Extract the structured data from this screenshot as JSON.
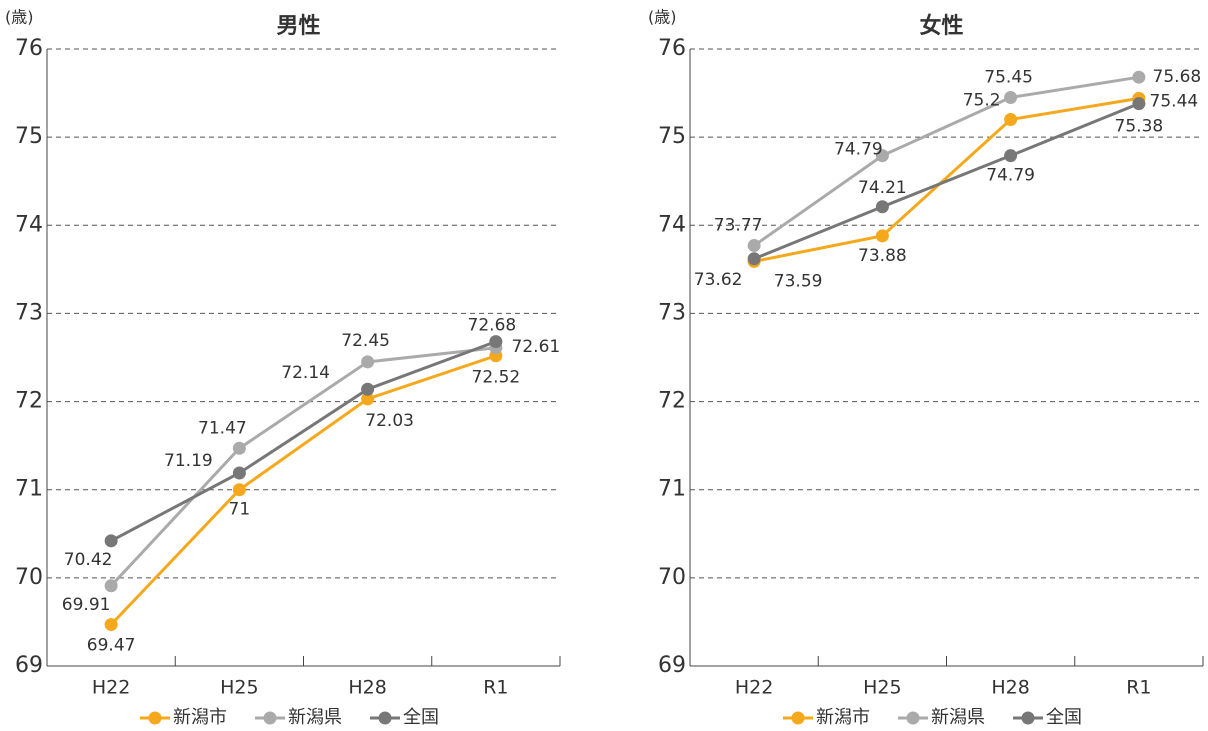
{
  "chart_data": [
    {
      "type": "line",
      "title": "男性",
      "y_label": "(歳)",
      "categories": [
        "H22",
        "H25",
        "H28",
        "R1"
      ],
      "series": [
        {
          "name": "新潟市",
          "color": "#f5a81c",
          "values": [
            69.47,
            71,
            72.03,
            72.52
          ]
        },
        {
          "name": "新潟県",
          "color": "#aaaaaa",
          "values": [
            69.91,
            71.47,
            72.45,
            72.61
          ]
        },
        {
          "name": "全国",
          "color": "#777777",
          "values": [
            70.42,
            71.19,
            72.14,
            72.68
          ]
        }
      ],
      "ylim": [
        69,
        76
      ],
      "yticks": [
        69,
        70,
        71,
        72,
        73,
        74,
        75,
        76
      ],
      "grid": true
    },
    {
      "type": "line",
      "title": "女性",
      "y_label": "(歳)",
      "categories": [
        "H22",
        "H25",
        "H28",
        "R1"
      ],
      "series": [
        {
          "name": "新潟市",
          "color": "#f5a81c",
          "values": [
            73.59,
            73.88,
            75.2,
            75.44
          ]
        },
        {
          "name": "新潟県",
          "color": "#aaaaaa",
          "values": [
            73.77,
            74.79,
            75.45,
            75.68
          ]
        },
        {
          "name": "全国",
          "color": "#777777",
          "values": [
            73.62,
            74.21,
            74.79,
            75.38
          ]
        }
      ],
      "ylim": [
        69,
        76
      ],
      "yticks": [
        69,
        70,
        71,
        72,
        73,
        74,
        75,
        76
      ],
      "grid": true
    }
  ]
}
